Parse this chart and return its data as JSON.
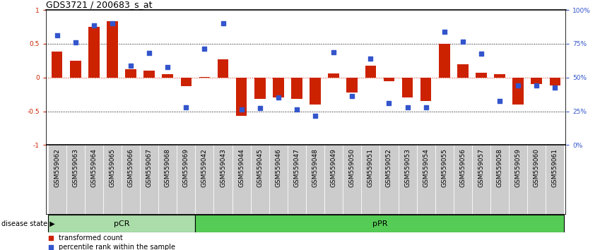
{
  "title": "GDS3721 / 200683_s_at",
  "samples": [
    "GSM559062",
    "GSM559063",
    "GSM559064",
    "GSM559065",
    "GSM559066",
    "GSM559067",
    "GSM559068",
    "GSM559069",
    "GSM559042",
    "GSM559043",
    "GSM559044",
    "GSM559045",
    "GSM559046",
    "GSM559047",
    "GSM559048",
    "GSM559049",
    "GSM559050",
    "GSM559051",
    "GSM559052",
    "GSM559053",
    "GSM559054",
    "GSM559055",
    "GSM559056",
    "GSM559057",
    "GSM559058",
    "GSM559059",
    "GSM559060",
    "GSM559061"
  ],
  "bar_values": [
    0.38,
    0.25,
    0.75,
    0.83,
    0.12,
    0.1,
    0.05,
    -0.13,
    0.01,
    0.27,
    -0.57,
    -0.32,
    -0.3,
    -0.32,
    -0.4,
    0.06,
    -0.22,
    0.18,
    -0.05,
    -0.3,
    -0.35,
    0.5,
    0.2,
    0.07,
    0.05,
    -0.4,
    -0.1,
    -0.12
  ],
  "dot_values": [
    0.63,
    0.52,
    0.77,
    0.8,
    0.18,
    0.36,
    0.15,
    -0.44,
    0.43,
    0.8,
    -0.47,
    -0.45,
    -0.3,
    -0.47,
    -0.57,
    0.37,
    -0.27,
    0.28,
    -0.38,
    -0.44,
    -0.44,
    0.68,
    0.53,
    0.35,
    -0.35,
    -0.12,
    -0.12,
    -0.15
  ],
  "pCR_count": 8,
  "pPR_count": 20,
  "bar_color": "#CC2200",
  "dot_color": "#3355CC",
  "pCR_color": "#AADDAA",
  "pPR_color": "#55CC55",
  "label_bg_color": "#CCCCCC",
  "ylim": [
    -1.0,
    1.0
  ],
  "bg_color": "white",
  "title_fontsize": 9,
  "tick_label_fontsize": 6.5,
  "annotation_fontsize": 8
}
